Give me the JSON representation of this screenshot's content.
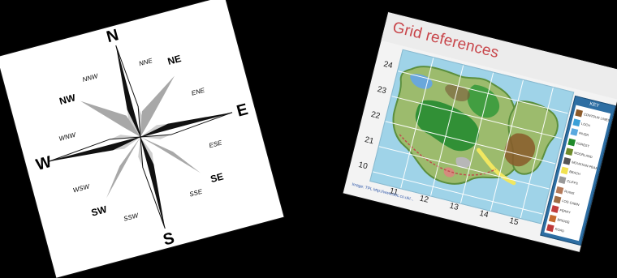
{
  "compass": {
    "labels": {
      "n": "N",
      "ne": "NE",
      "e": "E",
      "se": "SE",
      "s": "S",
      "sw": "SW",
      "w": "W",
      "nw": "NW",
      "nne": "NNE",
      "ene": "ENE",
      "ese": "ESE",
      "sse": "SSE",
      "ssw": "SSW",
      "wsw": "WSW",
      "wnw": "WNW",
      "nnw": "NNW"
    },
    "colors": {
      "dark": "#111111",
      "mid": "#8a8a8a",
      "light": "#d7d7d7"
    }
  },
  "map_slide": {
    "title": "Grid references",
    "y_labels": [
      "24",
      "23",
      "22",
      "21",
      "10"
    ],
    "x_labels": [
      "11",
      "12",
      "13",
      "14",
      "15"
    ],
    "key_title": "KEY",
    "key_items": [
      {
        "label": "CONTOUR LINES",
        "color": "#8b5a2b"
      },
      {
        "label": "LOCH",
        "color": "#3aa0d8"
      },
      {
        "label": "RIVER",
        "color": "#5aa9df"
      },
      {
        "label": "FOREST",
        "color": "#1f8a2a"
      },
      {
        "label": "MOORLAND",
        "color": "#6d8a2b"
      },
      {
        "label": "MOUNTAIN PEAK",
        "color": "#555555"
      },
      {
        "label": "BEACH",
        "color": "#f2e24f"
      },
      {
        "label": "CLIFFS",
        "color": "#999999"
      },
      {
        "label": "RUINS",
        "color": "#b37a5a"
      },
      {
        "label": "LOG CABIN",
        "color": "#9f6c45"
      },
      {
        "label": "FERRY",
        "color": "#c23d3d"
      },
      {
        "label": "BRIDGE",
        "color": "#c66a2f"
      },
      {
        "label": "ROAD",
        "color": "#bd3939"
      }
    ],
    "source_text": "Image: TPL http://www.bbc.co.uk/..."
  }
}
